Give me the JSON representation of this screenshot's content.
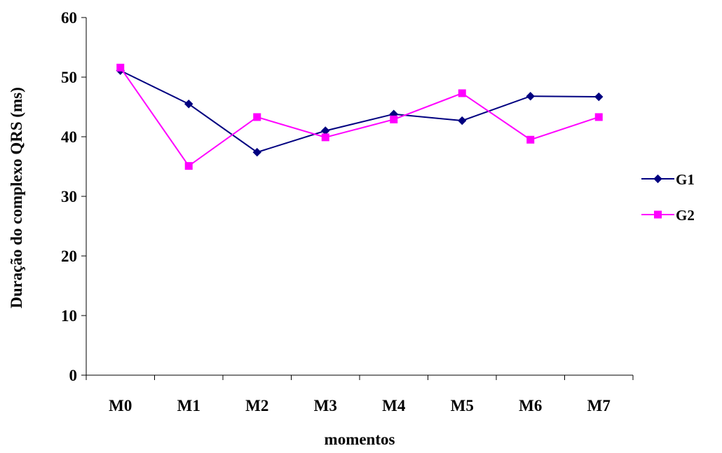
{
  "chart_data": {
    "type": "line",
    "title": "",
    "xlabel": "momentos",
    "ylabel": "Duração do complexo QRS (ms)",
    "categories": [
      "M0",
      "M1",
      "M2",
      "M3",
      "M4",
      "M5",
      "M6",
      "M7"
    ],
    "ylim": [
      0,
      60
    ],
    "yticks": [
      "0",
      "10",
      "20",
      "30",
      "40",
      "50",
      "60"
    ],
    "grid": false,
    "legend_position": "right",
    "series": [
      {
        "name": "G1",
        "color": "#000080",
        "marker": "diamond",
        "values": [
          51.1,
          45.5,
          37.4,
          41.0,
          43.8,
          42.7,
          46.8,
          46.7
        ]
      },
      {
        "name": "G2",
        "color": "#FF00FF",
        "marker": "square",
        "values": [
          51.6,
          35.1,
          43.3,
          39.9,
          42.9,
          47.3,
          39.5,
          43.3
        ]
      }
    ]
  }
}
